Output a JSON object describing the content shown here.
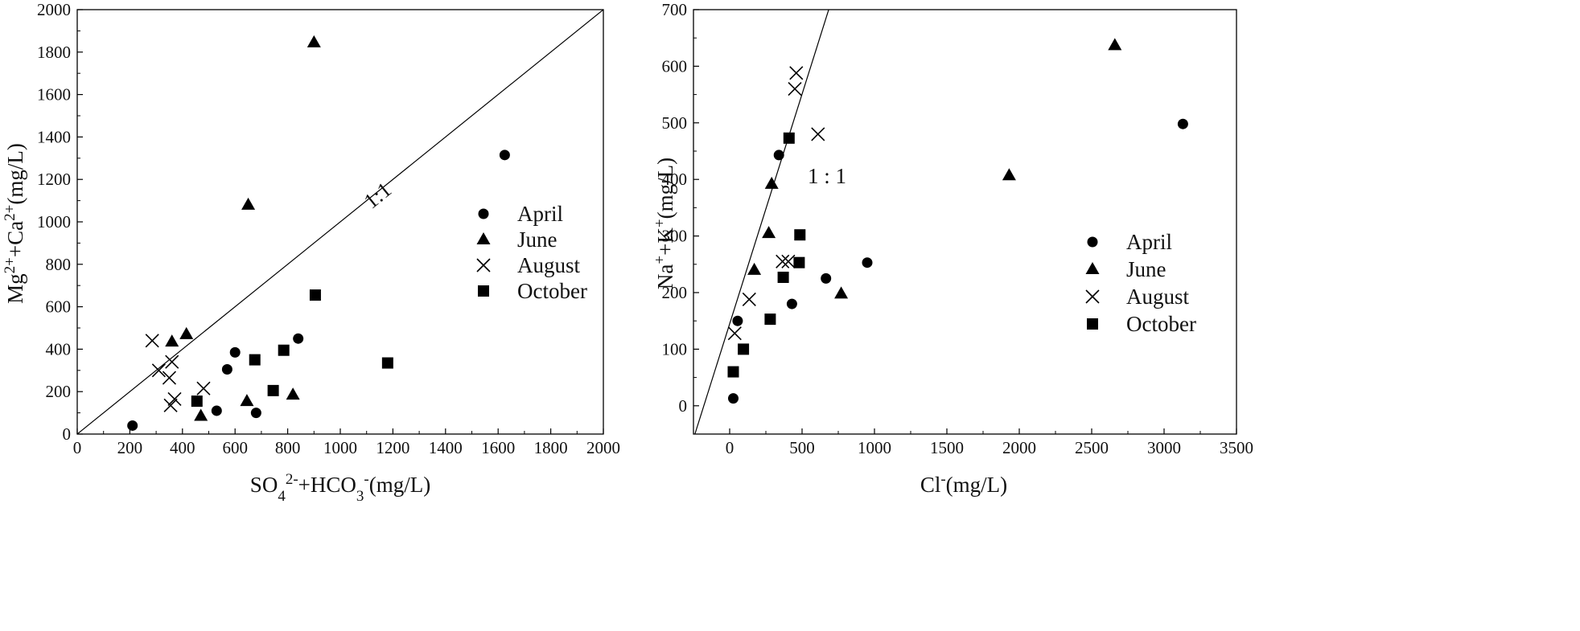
{
  "chart_data": [
    {
      "type": "scatter",
      "xlim": [
        0,
        2000
      ],
      "ylim": [
        0,
        2000
      ],
      "x_ticks": [
        0,
        200,
        400,
        600,
        800,
        1000,
        1200,
        1400,
        1600,
        1800,
        2000
      ],
      "y_ticks": [
        0,
        200,
        400,
        600,
        800,
        1000,
        1200,
        1400,
        1600,
        1800,
        2000
      ],
      "x_label": {
        "base": "SO",
        "sub": "4",
        "sup": "2-",
        "mid": "+HCO",
        "sub2": "3",
        "sup2": "-",
        "tail": "(mg/L)"
      },
      "y_label": {
        "p1": "Mg",
        "s1": "2+",
        "p2": "+Ca",
        "s2": "2+",
        "p3": "(mg/L)"
      },
      "reference_line": {
        "label": "1:1",
        "from": [
          0,
          0
        ],
        "to": [
          2000,
          2000
        ]
      },
      "legend_position": "right",
      "series": [
        {
          "name": "April",
          "marker": "circle",
          "points": [
            [
              210,
              40
            ],
            [
              530,
              110
            ],
            [
              570,
              305
            ],
            [
              600,
              385
            ],
            [
              680,
              100
            ],
            [
              840,
              450
            ],
            [
              1625,
              1315
            ]
          ]
        },
        {
          "name": "June",
          "marker": "triangle",
          "points": [
            [
              360,
              435
            ],
            [
              415,
              470
            ],
            [
              470,
              85
            ],
            [
              645,
              155
            ],
            [
              650,
              1080
            ],
            [
              820,
              185
            ],
            [
              900,
              1845
            ]
          ]
        },
        {
          "name": "August",
          "marker": "x",
          "points": [
            [
              285,
              440
            ],
            [
              310,
              300
            ],
            [
              350,
              265
            ],
            [
              355,
              135
            ],
            [
              360,
              340
            ],
            [
              370,
              165
            ],
            [
              480,
              215
            ]
          ]
        },
        {
          "name": "October",
          "marker": "square",
          "points": [
            [
              455,
              155
            ],
            [
              675,
              350
            ],
            [
              745,
              205
            ],
            [
              785,
              395
            ],
            [
              905,
              655
            ],
            [
              1180,
              335
            ]
          ]
        }
      ]
    },
    {
      "type": "scatter",
      "xlim": [
        -250,
        3500
      ],
      "ylim": [
        -50,
        700
      ],
      "x_ticks": [
        0,
        500,
        1000,
        1500,
        2000,
        2500,
        3000,
        3500
      ],
      "y_ticks": [
        0,
        100,
        200,
        300,
        400,
        500,
        600,
        700
      ],
      "x_label": {
        "base": "Cl",
        "sup": "-",
        "tail": "(mg/L)"
      },
      "y_label": {
        "p1": "Na",
        "s1": "+",
        "p2": "+K",
        "s2": "+",
        "p3": "(mg/L)"
      },
      "reference_line": {
        "label": "1 : 1",
        "from": [
          -240,
          -50
        ],
        "to": [
          690,
          705
        ]
      },
      "legend_position": "right",
      "series": [
        {
          "name": "April",
          "marker": "circle",
          "points": [
            [
              25,
              13
            ],
            [
              55,
              150
            ],
            [
              340,
              443
            ],
            [
              430,
              180
            ],
            [
              665,
              225
            ],
            [
              950,
              253
            ],
            [
              3130,
              498
            ]
          ]
        },
        {
          "name": "June",
          "marker": "triangle",
          "points": [
            [
              170,
              240
            ],
            [
              270,
              305
            ],
            [
              290,
              392
            ],
            [
              770,
              198
            ],
            [
              1930,
              407
            ],
            [
              2660,
              637
            ]
          ]
        },
        {
          "name": "August",
          "marker": "x",
          "points": [
            [
              35,
              128
            ],
            [
              135,
              188
            ],
            [
              365,
              255
            ],
            [
              405,
              255
            ],
            [
              450,
              560
            ],
            [
              460,
              588
            ],
            [
              610,
              480
            ]
          ]
        },
        {
          "name": "October",
          "marker": "square",
          "points": [
            [
              25,
              60
            ],
            [
              95,
              100
            ],
            [
              280,
              153
            ],
            [
              370,
              227
            ],
            [
              410,
              473
            ],
            [
              480,
              253
            ],
            [
              485,
              302
            ]
          ]
        }
      ]
    }
  ]
}
